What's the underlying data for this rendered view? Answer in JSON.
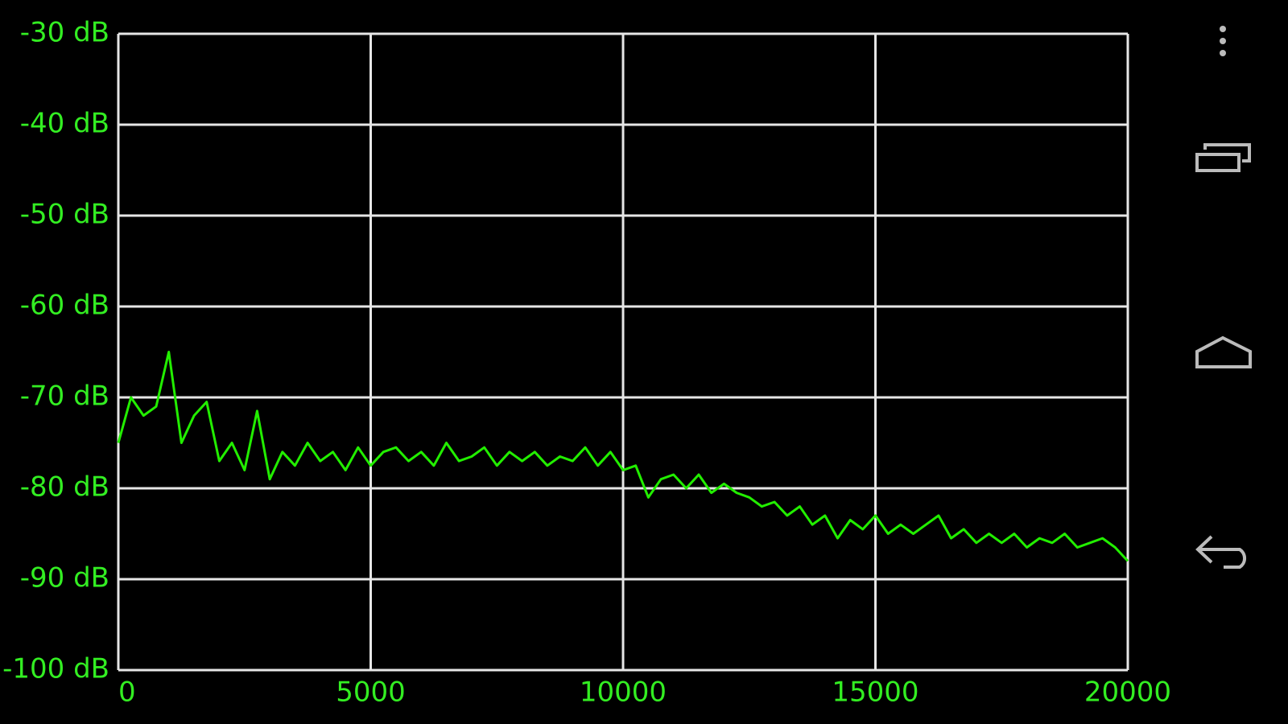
{
  "chart_data": {
    "type": "line",
    "x": [
      0,
      250,
      500,
      750,
      1000,
      1250,
      1500,
      1750,
      2000,
      2250,
      2500,
      2750,
      3000,
      3250,
      3500,
      3750,
      4000,
      4250,
      4500,
      4750,
      5000,
      5250,
      5500,
      5750,
      6000,
      6250,
      6500,
      6750,
      7000,
      7250,
      7500,
      7750,
      8000,
      8250,
      8500,
      8750,
      9000,
      9250,
      9500,
      9750,
      10000,
      10250,
      10500,
      10750,
      11000,
      11250,
      11500,
      11750,
      12000,
      12250,
      12500,
      12750,
      13000,
      13250,
      13500,
      13750,
      14000,
      14250,
      14500,
      14750,
      15000,
      15250,
      15500,
      15750,
      16000,
      16250,
      16500,
      16750,
      17000,
      17250,
      17500,
      17750,
      18000,
      18250,
      18500,
      18750,
      19000,
      19250,
      19500,
      19750,
      20000
    ],
    "values": [
      -75,
      -70,
      -72,
      -71,
      -65,
      -75,
      -72,
      -70.5,
      -77,
      -75,
      -78,
      -71.5,
      -79,
      -76,
      -77.5,
      -75,
      -77,
      -76,
      -78,
      -75.5,
      -77.5,
      -76,
      -75.5,
      -77,
      -76,
      -77.5,
      -75,
      -77,
      -76.5,
      -75.5,
      -77.5,
      -76,
      -77,
      -76,
      -77.5,
      -76.5,
      -77,
      -75.5,
      -77.5,
      -76,
      -78,
      -77.5,
      -81,
      -79,
      -78.5,
      -80,
      -78.5,
      -80.5,
      -79.5,
      -80.5,
      -81,
      -82,
      -81.5,
      -83,
      -82,
      -84,
      -83,
      -85.5,
      -83.5,
      -84.5,
      -83,
      -85,
      -84,
      -85,
      -84,
      -83,
      -85.5,
      -84.5,
      -86,
      -85,
      -86,
      -85,
      -86.5,
      -85.5,
      -86,
      -85,
      -86.5,
      -86,
      -85.5,
      -86.5,
      -88
    ],
    "color": "#22ee00",
    "xlim": [
      0,
      20000
    ],
    "xticks": [
      0,
      5000,
      10000,
      15000,
      20000
    ],
    "ylim": [
      -100,
      -30
    ],
    "yticks": [
      {
        "value": -30,
        "label": "-30 dB"
      },
      {
        "value": -40,
        "label": "-40 dB"
      },
      {
        "value": -50,
        "label": "-50 dB"
      },
      {
        "value": -60,
        "label": "-60 dB"
      },
      {
        "value": -70,
        "label": "-70 dB"
      },
      {
        "value": -80,
        "label": "-80 dB"
      },
      {
        "value": -90,
        "label": "-90 dB"
      },
      {
        "value": -100,
        "label": "-100 dB"
      }
    ],
    "grid": true
  }
}
